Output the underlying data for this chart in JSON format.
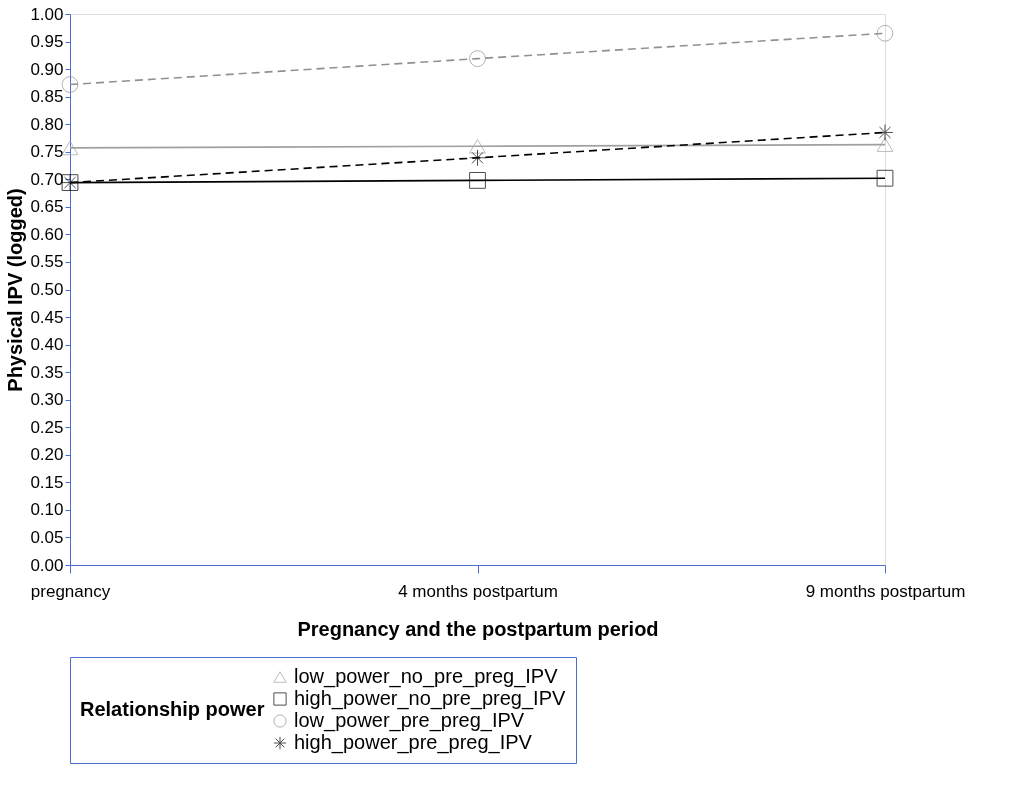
{
  "chart_data": {
    "type": "line",
    "xlabel": "Pregnancy and the postpartum period",
    "ylabel": "Physical IPV (logged)",
    "legend_title": "Relationship power",
    "legend": "bottom",
    "grid": false,
    "categories": [
      "pregnancy",
      "4 months postpartum",
      "9 months postpartum"
    ],
    "ylim": [
      0,
      1
    ],
    "yticks": [
      {
        "value": 0,
        "label": "0.00"
      },
      {
        "value": 0.05,
        "label": "0.05"
      },
      {
        "value": 0.1,
        "label": "0.10"
      },
      {
        "value": 0.15,
        "label": "0.15"
      },
      {
        "value": 0.2,
        "label": "0.20"
      },
      {
        "value": 0.25,
        "label": "0.25"
      },
      {
        "value": 0.3,
        "label": "0.30"
      },
      {
        "value": 0.35,
        "label": "0.35"
      },
      {
        "value": 0.4,
        "label": "0.40"
      },
      {
        "value": 0.45,
        "label": "0.45"
      },
      {
        "value": 0.5,
        "label": "0.50"
      },
      {
        "value": 0.55,
        "label": "0.55"
      },
      {
        "value": 0.6,
        "label": "0.60"
      },
      {
        "value": 0.65,
        "label": "0.65"
      },
      {
        "value": 0.7,
        "label": "0.70"
      },
      {
        "value": 0.75,
        "label": "0.75"
      },
      {
        "value": 0.8,
        "label": "0.80"
      },
      {
        "value": 0.85,
        "label": "0.85"
      },
      {
        "value": 0.9,
        "label": "0.90"
      },
      {
        "value": 0.95,
        "label": "0.95"
      },
      {
        "value": 1,
        "label": "1.00"
      }
    ],
    "series": [
      {
        "name": "low_power_no_pre_preg_IPV",
        "color": "#a0a0a0",
        "marker": "triangle",
        "line_style": "solid",
        "values": [
          0.757,
          0.76,
          0.763
        ]
      },
      {
        "name": "high_power_no_pre_preg_IPV",
        "color": "#000000",
        "marker": "square",
        "line_style": "solid",
        "values": [
          0.694,
          0.698,
          0.702
        ]
      },
      {
        "name": "low_power_pre_preg_IPV",
        "color": "#909090",
        "marker": "circle",
        "line_style": "dashed",
        "values": [
          0.872,
          0.919,
          0.965
        ]
      },
      {
        "name": "high_power_pre_preg_IPV",
        "color": "#000000",
        "marker": "cross",
        "line_style": "dashed",
        "values": [
          0.694,
          0.739,
          0.785
        ]
      }
    ]
  }
}
